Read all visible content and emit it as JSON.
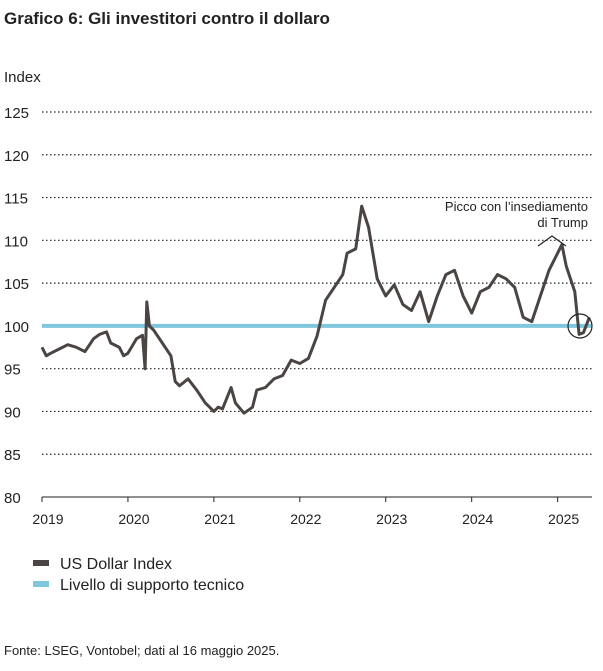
{
  "chart_data": {
    "type": "line",
    "title": "Grafico 6: Gli investitori contro il dollaro",
    "ylabel": "Index",
    "annotation": [
      "Picco con l’insediamento",
      "di Trump"
    ],
    "source": "Fonte: LSEG, Vontobel; dati al 16 maggio 2025.",
    "xlim": [
      2019,
      2025.4
    ],
    "xticks": [
      2019,
      2020,
      2021,
      2022,
      2023,
      2024,
      2025
    ],
    "ylim": [
      80,
      125
    ],
    "yticks": [
      80,
      85,
      90,
      95,
      100,
      105,
      110,
      115,
      120,
      125
    ],
    "grid": true,
    "series": [
      {
        "name": "US Dollar Index",
        "color": "#4a4542",
        "x": [
          2019.0,
          2019.05,
          2019.1,
          2019.2,
          2019.3,
          2019.4,
          2019.5,
          2019.6,
          2019.67,
          2019.75,
          2019.8,
          2019.9,
          2019.95,
          2020.0,
          2020.1,
          2020.17,
          2020.2,
          2020.22,
          2020.25,
          2020.3,
          2020.4,
          2020.5,
          2020.55,
          2020.6,
          2020.7,
          2020.8,
          2020.9,
          2021.0,
          2021.05,
          2021.1,
          2021.2,
          2021.25,
          2021.35,
          2021.45,
          2021.5,
          2021.6,
          2021.7,
          2021.8,
          2021.9,
          2022.0,
          2022.1,
          2022.2,
          2022.3,
          2022.4,
          2022.5,
          2022.55,
          2022.65,
          2022.72,
          2022.8,
          2022.9,
          2023.0,
          2023.1,
          2023.2,
          2023.3,
          2023.4,
          2023.5,
          2023.6,
          2023.7,
          2023.8,
          2023.9,
          2024.0,
          2024.1,
          2024.2,
          2024.3,
          2024.4,
          2024.5,
          2024.6,
          2024.7,
          2024.8,
          2024.9,
          2025.0,
          2025.05,
          2025.1,
          2025.2,
          2025.25,
          2025.3,
          2025.37
        ],
        "values": [
          97.5,
          96.5,
          96.8,
          97.3,
          97.8,
          97.5,
          97.0,
          98.5,
          99.0,
          99.3,
          98.0,
          97.5,
          96.5,
          96.8,
          98.5,
          98.9,
          95.0,
          102.8,
          100.0,
          99.5,
          98.0,
          96.5,
          93.5,
          93.0,
          93.8,
          92.5,
          91.0,
          90.0,
          90.5,
          90.3,
          92.8,
          91.0,
          89.8,
          90.5,
          92.5,
          92.8,
          93.8,
          94.2,
          96.0,
          95.6,
          96.2,
          98.8,
          103.0,
          104.5,
          106.0,
          108.5,
          109.0,
          114.0,
          111.5,
          105.5,
          103.5,
          104.8,
          102.5,
          101.8,
          104.0,
          100.5,
          103.5,
          106.0,
          106.5,
          103.5,
          101.5,
          104.0,
          104.5,
          106.0,
          105.5,
          104.5,
          101.0,
          100.5,
          103.5,
          106.5,
          108.5,
          109.5,
          107.0,
          104.0,
          99.0,
          99.2,
          101.0
        ]
      },
      {
        "name": "Livello di supporto tecnico",
        "color": "#7fc6de",
        "x": [
          2019,
          2025.4
        ],
        "values": [
          100,
          100
        ]
      }
    ]
  }
}
